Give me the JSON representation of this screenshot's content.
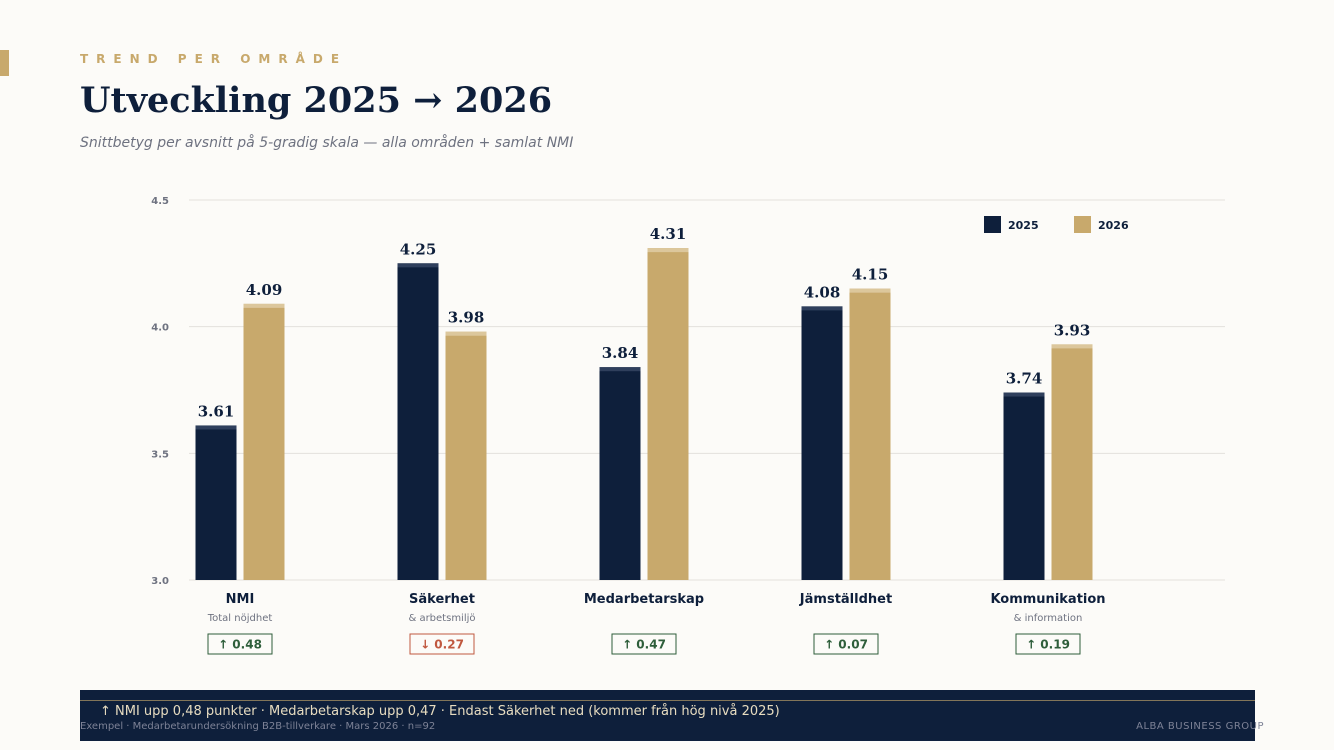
{
  "header": {
    "eyebrow": "TREND PER OMRÅDE",
    "title": "Utveckling 2025 → 2026",
    "subtitle": "Snittbetyg per avsnitt på 5-gradig skala — alla områden + samlat NMI"
  },
  "colors": {
    "series_2025": "#0e1f3b",
    "series_2026": "#c8a96c",
    "positive": "#2e5e3a",
    "negative": "#c0583f",
    "accent": "#c8a96c"
  },
  "chart_data": {
    "type": "bar",
    "title": "",
    "xlabel": "",
    "ylabel": "",
    "ylim": [
      3.0,
      4.5
    ],
    "yticks": [
      "3.0",
      "3.5",
      "4.0",
      "4.5"
    ],
    "grid": true,
    "legend_position": "top-right",
    "categories": [
      "NMI",
      "Säkerhet",
      "Medarbetarskap",
      "Jämställdhet",
      "Kommunikation"
    ],
    "category_sublabels": [
      "Total nöjdhet",
      "& arbetsmiljö",
      "",
      "",
      "& information"
    ],
    "series": [
      {
        "name": "2025",
        "values": [
          3.61,
          4.25,
          3.84,
          4.08,
          3.74
        ]
      },
      {
        "name": "2026",
        "values": [
          4.09,
          3.98,
          4.31,
          4.15,
          3.93
        ]
      }
    ],
    "value_labels": [
      [
        "3.61",
        "4.25",
        "3.84",
        "4.08",
        "3.74"
      ],
      [
        "4.09",
        "3.98",
        "4.31",
        "4.15",
        "3.93"
      ]
    ],
    "changes": [
      "↑ 0.48",
      "↓ 0.27",
      "↑ 0.47",
      "↑ 0.07",
      "↑ 0.19"
    ],
    "change_direction": [
      "up",
      "down",
      "up",
      "up",
      "up"
    ]
  },
  "summary": "↑ NMI upp 0,48 punkter · Medarbetarskap upp 0,47 · Endast Säkerhet ned (kommer från hög nivå 2025)",
  "footer": {
    "left": "Exempel · Medarbetarundersökning B2B-tillverkare · Mars 2026 · n=92",
    "right": "ALBA BUSINESS GROUP"
  }
}
